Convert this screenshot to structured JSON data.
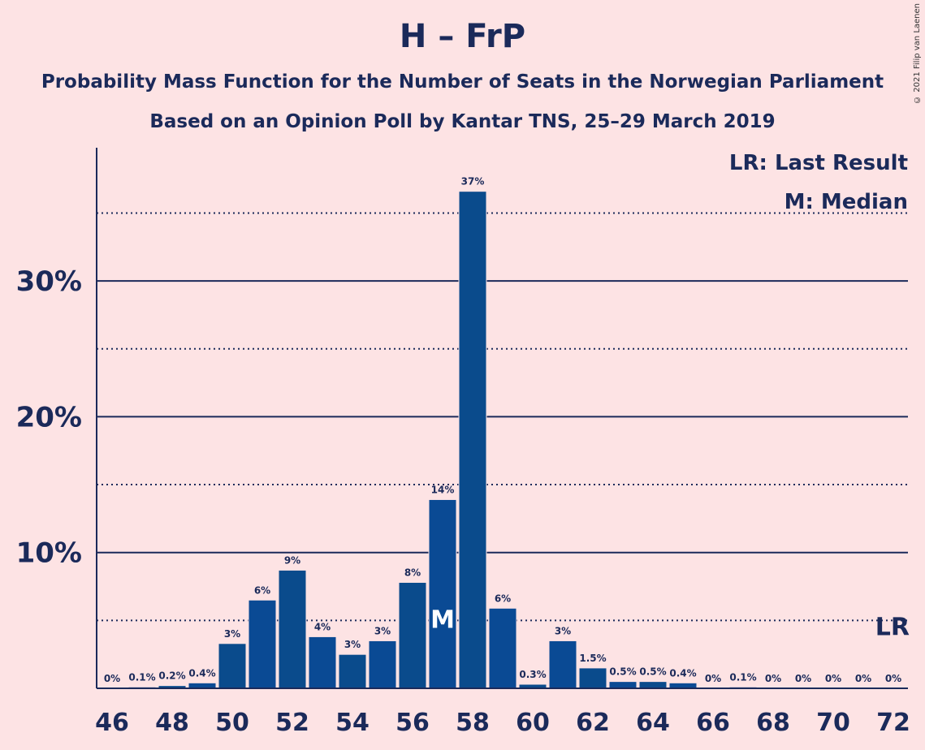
{
  "header": {
    "title": "H – FrP",
    "subtitle1": "Probability Mass Function for the Number of Seats in the Norwegian Parliament",
    "subtitle2": "Based on an Opinion Poll by Kantar TNS, 25–29 March 2019",
    "copyright": "© 2021 Filip van Laenen"
  },
  "legend": {
    "last_result": "LR: Last Result",
    "median": "M: Median"
  },
  "markers": {
    "median_label": "M",
    "median_seat": 57,
    "last_result_label": "LR",
    "last_result_seat": 72
  },
  "colors": {
    "background": "#fde3e4",
    "bar_a": "#0a4b8c",
    "bar_b": "#0a4a94",
    "text": "#1b2a5a"
  },
  "chart_data": {
    "type": "bar",
    "x": [
      46,
      47,
      48,
      49,
      50,
      51,
      52,
      53,
      54,
      55,
      56,
      57,
      58,
      59,
      60,
      61,
      62,
      63,
      64,
      65,
      66,
      67,
      68,
      69,
      70,
      71,
      72
    ],
    "values": [
      0,
      0.1,
      0.2,
      0.4,
      3.3,
      6.5,
      8.7,
      3.8,
      2.5,
      3.5,
      7.8,
      13.9,
      36.6,
      5.9,
      0.3,
      3.5,
      1.5,
      0.5,
      0.5,
      0.4,
      0,
      0.1,
      0,
      0,
      0,
      0,
      0
    ],
    "value_labels": [
      "0%",
      "0.1%",
      "0.2%",
      "0.4%",
      "3%",
      "6%",
      "9%",
      "4%",
      "3%",
      "3%",
      "8%",
      "14%",
      "37%",
      "6%",
      "0.3%",
      "3%",
      "1.5%",
      "0.5%",
      "0.5%",
      "0.4%",
      "0%",
      "0.1%",
      "0%",
      "0%",
      "0%",
      "0%",
      "0%"
    ],
    "x_tick_labels": [
      "46",
      "48",
      "50",
      "52",
      "54",
      "56",
      "58",
      "60",
      "62",
      "64",
      "66",
      "68",
      "70",
      "72"
    ],
    "y_tick_labels": [
      "10%",
      "20%",
      "30%"
    ],
    "y_ticks": [
      10,
      20,
      30
    ],
    "y_minor_gridlines": [
      5,
      15,
      25,
      35
    ],
    "ylim": [
      0,
      40
    ],
    "title": "H – FrP",
    "xlabel": "",
    "ylabel": "",
    "grid": true,
    "legend_position": "top-right"
  }
}
